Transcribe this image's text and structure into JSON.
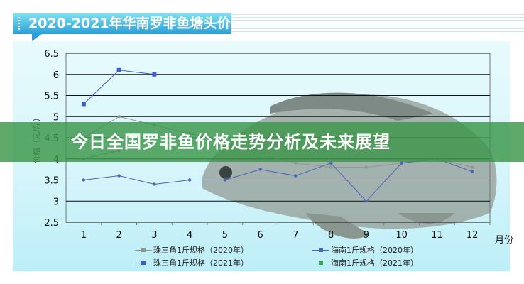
{
  "banner": {
    "text": "今日全国罗非鱼价格走势分析及未来展望"
  },
  "chart_data": {
    "type": "line",
    "title": "2020-2021年华南罗非鱼塘头价",
    "xlabel": "月份",
    "ylabel": "价格（元/斤）",
    "categories": [
      "1",
      "2",
      "3",
      "4",
      "5",
      "6",
      "7",
      "8",
      "9",
      "10",
      "11",
      "12"
    ],
    "yticks": [
      "6.5",
      "6",
      "5.5",
      "5",
      "4.5",
      "4",
      "3.5",
      "3",
      "2.5"
    ],
    "ylim": [
      2.5,
      6.5
    ],
    "grid": true,
    "legend": "bottom",
    "series": [
      {
        "name": "珠三角1斤规格（2020年）",
        "color": "#8a9a8a",
        "values": [
          4.5,
          5.0,
          4.8,
          4.6,
          4.4,
          4.1,
          3.9,
          3.8,
          3.8,
          3.9,
          4.0,
          3.8
        ]
      },
      {
        "name": "珠三角1斤规格（2021年）",
        "color": "#3c5cc8",
        "values": [
          5.3,
          6.1,
          6.0,
          null,
          null,
          null,
          null,
          null,
          null,
          null,
          null,
          null
        ]
      },
      {
        "name": "海南1斤规格（2020年）",
        "color": "#4a64b8",
        "values": [
          3.5,
          3.6,
          3.4,
          3.5,
          3.5,
          3.75,
          3.6,
          3.9,
          3.0,
          3.9,
          4.0,
          3.7
        ]
      },
      {
        "name": "海南1斤规格（2021年）",
        "color": "#3aa050",
        "values": [
          4.0,
          4.2,
          null,
          null,
          null,
          null,
          null,
          null,
          null,
          null,
          null,
          null
        ]
      }
    ]
  }
}
